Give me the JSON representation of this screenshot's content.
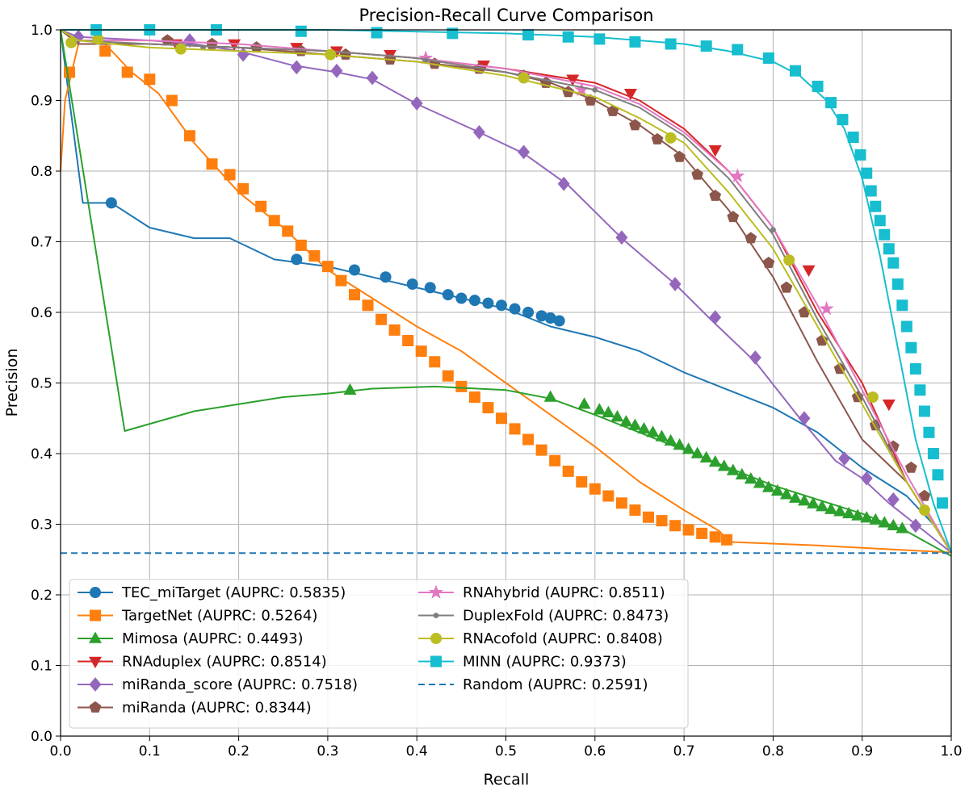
{
  "chart_data": {
    "type": "line",
    "title": "Precision-Recall Curve Comparison",
    "xlabel": "Recall",
    "ylabel": "Precision",
    "xlim": [
      0.0,
      1.0
    ],
    "ylim": [
      0.0,
      1.0
    ],
    "xticks": [
      "0.0",
      "0.1",
      "0.2",
      "0.3",
      "0.4",
      "0.5",
      "0.6",
      "0.7",
      "0.8",
      "0.9",
      "1.0"
    ],
    "yticks": [
      "0.0",
      "0.1",
      "0.2",
      "0.3",
      "0.4",
      "0.5",
      "0.6",
      "0.7",
      "0.8",
      "0.9",
      "1.0"
    ],
    "grid": true,
    "legend_position": "lower-left",
    "series": [
      {
        "name": "TEC_miTarget (AUPRC: 0.5835)",
        "color": "#1f77b4",
        "marker": "circle",
        "x": [
          0.0,
          0.01,
          0.025,
          0.057,
          0.1,
          0.15,
          0.19,
          0.24,
          0.3,
          0.35,
          0.4,
          0.45,
          0.5,
          0.55,
          0.6,
          0.65,
          0.7,
          0.75,
          0.8,
          0.85,
          0.9,
          0.95,
          0.98,
          1.0
        ],
        "y": [
          1.0,
          0.9,
          0.755,
          0.755,
          0.72,
          0.705,
          0.705,
          0.675,
          0.665,
          0.65,
          0.635,
          0.62,
          0.605,
          0.58,
          0.565,
          0.545,
          0.515,
          0.49,
          0.465,
          0.43,
          0.38,
          0.34,
          0.3,
          0.26
        ],
        "markers_x": [
          0.057,
          0.265,
          0.33,
          0.365,
          0.395,
          0.415,
          0.435,
          0.45,
          0.465,
          0.48,
          0.495,
          0.51,
          0.525,
          0.54,
          0.55,
          0.56
        ],
        "markers_y": [
          0.755,
          0.675,
          0.66,
          0.65,
          0.64,
          0.635,
          0.625,
          0.62,
          0.617,
          0.613,
          0.61,
          0.605,
          0.6,
          0.595,
          0.592,
          0.588
        ]
      },
      {
        "name": "TargetNet (AUPRC: 0.5264)",
        "color": "#ff7f0e",
        "marker": "square",
        "x": [
          0.0,
          0.005,
          0.02,
          0.05,
          0.08,
          0.11,
          0.15,
          0.2,
          0.25,
          0.3,
          0.35,
          0.4,
          0.45,
          0.5,
          0.55,
          0.6,
          0.65,
          0.7,
          0.74,
          0.75,
          0.85,
          1.0
        ],
        "y": [
          0.8,
          0.9,
          0.98,
          0.98,
          0.94,
          0.91,
          0.84,
          0.77,
          0.72,
          0.66,
          0.62,
          0.58,
          0.545,
          0.5,
          0.455,
          0.41,
          0.36,
          0.32,
          0.29,
          0.275,
          0.27,
          0.26
        ],
        "markers_x": [
          0.01,
          0.05,
          0.075,
          0.1,
          0.125,
          0.145,
          0.17,
          0.19,
          0.205,
          0.225,
          0.24,
          0.255,
          0.27,
          0.285,
          0.3,
          0.315,
          0.33,
          0.345,
          0.36,
          0.375,
          0.39,
          0.405,
          0.42,
          0.435,
          0.45,
          0.465,
          0.48,
          0.495,
          0.51,
          0.525,
          0.54,
          0.555,
          0.57,
          0.585,
          0.6,
          0.615,
          0.63,
          0.645,
          0.66,
          0.675,
          0.69,
          0.705,
          0.72,
          0.735,
          0.748
        ],
        "markers_y": [
          0.94,
          0.97,
          0.94,
          0.93,
          0.9,
          0.85,
          0.81,
          0.795,
          0.775,
          0.75,
          0.73,
          0.715,
          0.695,
          0.68,
          0.665,
          0.645,
          0.625,
          0.61,
          0.59,
          0.575,
          0.56,
          0.545,
          0.53,
          0.51,
          0.495,
          0.48,
          0.465,
          0.45,
          0.435,
          0.42,
          0.405,
          0.39,
          0.375,
          0.36,
          0.35,
          0.34,
          0.33,
          0.32,
          0.31,
          0.305,
          0.298,
          0.292,
          0.287,
          0.282,
          0.278
        ]
      },
      {
        "name": "Mimosa (AUPRC: 0.4493)",
        "color": "#2ca02c",
        "marker": "triangle-up",
        "x": [
          0.0,
          0.072,
          0.15,
          0.2,
          0.25,
          0.3,
          0.35,
          0.42,
          0.5,
          0.55,
          0.6,
          0.65,
          0.7,
          0.75,
          0.8,
          0.85,
          0.9,
          0.95,
          1.0
        ],
        "y": [
          1.0,
          0.432,
          0.46,
          0.47,
          0.48,
          0.485,
          0.492,
          0.495,
          0.49,
          0.478,
          0.455,
          0.43,
          0.405,
          0.38,
          0.355,
          0.335,
          0.315,
          0.29,
          0.255
        ],
        "markers_x": [
          0.325,
          0.55,
          0.588,
          0.605,
          0.615,
          0.625,
          0.635,
          0.645,
          0.655,
          0.665,
          0.675,
          0.685,
          0.695,
          0.705,
          0.715,
          0.725,
          0.735,
          0.745,
          0.755,
          0.765,
          0.775,
          0.785,
          0.795,
          0.805,
          0.815,
          0.825,
          0.835,
          0.845,
          0.855,
          0.865,
          0.875,
          0.885,
          0.895,
          0.905,
          0.915,
          0.925,
          0.935,
          0.945
        ],
        "markers_y": [
          0.49,
          0.48,
          0.47,
          0.462,
          0.458,
          0.452,
          0.445,
          0.44,
          0.435,
          0.43,
          0.424,
          0.418,
          0.412,
          0.406,
          0.4,
          0.394,
          0.388,
          0.382,
          0.376,
          0.37,
          0.364,
          0.358,
          0.352,
          0.347,
          0.342,
          0.337,
          0.333,
          0.329,
          0.325,
          0.321,
          0.318,
          0.315,
          0.312,
          0.309,
          0.306,
          0.302,
          0.298,
          0.294
        ]
      },
      {
        "name": "RNAduplex (AUPRC: 0.8514)",
        "color": "#d62728",
        "marker": "triangle-down",
        "x": [
          0.0,
          0.02,
          0.1,
          0.2,
          0.3,
          0.4,
          0.5,
          0.6,
          0.65,
          0.7,
          0.75,
          0.8,
          0.85,
          0.9,
          0.95,
          1.0
        ],
        "y": [
          1.0,
          0.98,
          0.98,
          0.975,
          0.97,
          0.96,
          0.945,
          0.925,
          0.9,
          0.86,
          0.8,
          0.72,
          0.6,
          0.5,
          0.36,
          0.26
        ],
        "markers_x": [
          0.13,
          0.195,
          0.265,
          0.31,
          0.37,
          0.475,
          0.575,
          0.64,
          0.735,
          0.84,
          0.93
        ],
        "markers_y": [
          0.98,
          0.98,
          0.975,
          0.97,
          0.965,
          0.95,
          0.93,
          0.91,
          0.83,
          0.66,
          0.47
        ]
      },
      {
        "name": "miRanda_score (AUPRC: 0.7518)",
        "color": "#9467bd",
        "marker": "diamond",
        "x": [
          0.0,
          0.02,
          0.1,
          0.15,
          0.2,
          0.26,
          0.31,
          0.35,
          0.4,
          0.47,
          0.52,
          0.57,
          0.63,
          0.69,
          0.73,
          0.78,
          0.83,
          0.87,
          0.9,
          0.93,
          0.96,
          1.0
        ],
        "y": [
          1.0,
          0.99,
          0.985,
          0.98,
          0.97,
          0.95,
          0.94,
          0.93,
          0.895,
          0.855,
          0.825,
          0.78,
          0.705,
          0.64,
          0.59,
          0.53,
          0.45,
          0.39,
          0.365,
          0.33,
          0.3,
          0.26
        ],
        "markers_x": [
          0.02,
          0.145,
          0.205,
          0.265,
          0.31,
          0.35,
          0.4,
          0.47,
          0.52,
          0.565,
          0.63,
          0.69,
          0.735,
          0.78,
          0.835,
          0.88,
          0.905,
          0.935,
          0.96
        ],
        "markers_y": [
          0.99,
          0.985,
          0.965,
          0.947,
          0.942,
          0.932,
          0.896,
          0.855,
          0.827,
          0.782,
          0.706,
          0.64,
          0.593,
          0.536,
          0.45,
          0.393,
          0.365,
          0.335,
          0.298
        ]
      },
      {
        "name": "miRanda (AUPRC: 0.8344)",
        "color": "#8c564b",
        "marker": "pentagon",
        "x": [
          0.0,
          0.02,
          0.1,
          0.2,
          0.3,
          0.4,
          0.5,
          0.55,
          0.6,
          0.65,
          0.7,
          0.75,
          0.8,
          0.85,
          0.9,
          0.95,
          0.98,
          1.0
        ],
        "y": [
          1.0,
          0.98,
          0.98,
          0.975,
          0.965,
          0.955,
          0.94,
          0.925,
          0.9,
          0.865,
          0.82,
          0.745,
          0.65,
          0.53,
          0.42,
          0.36,
          0.3,
          0.26
        ],
        "markers_x": [
          0.12,
          0.17,
          0.22,
          0.27,
          0.32,
          0.37,
          0.42,
          0.47,
          0.52,
          0.545,
          0.57,
          0.595,
          0.62,
          0.645,
          0.67,
          0.695,
          0.715,
          0.735,
          0.755,
          0.775,
          0.795,
          0.815,
          0.835,
          0.855,
          0.875,
          0.895,
          0.915,
          0.935,
          0.955,
          0.97
        ],
        "markers_y": [
          0.985,
          0.98,
          0.975,
          0.97,
          0.965,
          0.958,
          0.952,
          0.945,
          0.935,
          0.925,
          0.912,
          0.9,
          0.885,
          0.865,
          0.845,
          0.82,
          0.795,
          0.765,
          0.735,
          0.705,
          0.67,
          0.635,
          0.6,
          0.56,
          0.52,
          0.48,
          0.44,
          0.41,
          0.38,
          0.34
        ]
      },
      {
        "name": "RNAhybrid (AUPRC: 0.8511)",
        "color": "#e377c2",
        "marker": "star",
        "x": [
          0.0,
          0.02,
          0.1,
          0.2,
          0.3,
          0.4,
          0.5,
          0.6,
          0.65,
          0.7,
          0.75,
          0.8,
          0.85,
          0.9,
          0.95,
          1.0
        ],
        "y": [
          1.0,
          0.985,
          0.985,
          0.98,
          0.97,
          0.96,
          0.945,
          0.92,
          0.895,
          0.855,
          0.8,
          0.72,
          0.61,
          0.49,
          0.37,
          0.26
        ],
        "markers_x": [
          0.41,
          0.585,
          0.76,
          0.86
        ],
        "markers_y": [
          0.96,
          0.915,
          0.793,
          0.605
        ]
      },
      {
        "name": "DuplexFold (AUPRC: 0.8473)",
        "color": "#7f7f7f",
        "marker": "point",
        "x": [
          0.0,
          0.02,
          0.1,
          0.2,
          0.3,
          0.4,
          0.5,
          0.6,
          0.65,
          0.7,
          0.75,
          0.8,
          0.85,
          0.9,
          0.95,
          1.0
        ],
        "y": [
          1.0,
          0.985,
          0.98,
          0.975,
          0.97,
          0.96,
          0.94,
          0.915,
          0.89,
          0.85,
          0.79,
          0.71,
          0.59,
          0.48,
          0.36,
          0.26
        ],
        "markers_x": [
          0.16,
          0.41,
          0.6,
          0.8
        ],
        "markers_y": [
          0.975,
          0.957,
          0.915,
          0.717
        ]
      },
      {
        "name": "RNAcofold (AUPRC: 0.8408)",
        "color": "#bcbd22",
        "marker": "circle",
        "x": [
          0.0,
          0.02,
          0.1,
          0.2,
          0.3,
          0.4,
          0.5,
          0.6,
          0.65,
          0.7,
          0.75,
          0.8,
          0.85,
          0.9,
          0.95,
          1.0
        ],
        "y": [
          1.0,
          0.985,
          0.975,
          0.97,
          0.965,
          0.955,
          0.935,
          0.905,
          0.875,
          0.84,
          0.77,
          0.69,
          0.58,
          0.47,
          0.36,
          0.26
        ],
        "markers_x": [
          0.012,
          0.042,
          0.135,
          0.303,
          0.52,
          0.685,
          0.818,
          0.912,
          0.97
        ],
        "markers_y": [
          0.982,
          0.987,
          0.973,
          0.965,
          0.932,
          0.847,
          0.674,
          0.48,
          0.32
        ]
      },
      {
        "name": "MINN (AUPRC: 0.9373)",
        "color": "#17becf",
        "marker": "square",
        "x": [
          0.0,
          0.1,
          0.3,
          0.5,
          0.6,
          0.7,
          0.75,
          0.8,
          0.83,
          0.86,
          0.88,
          0.9,
          0.92,
          0.94,
          0.96,
          0.98,
          1.0
        ],
        "y": [
          1.0,
          1.0,
          1.0,
          0.995,
          0.99,
          0.98,
          0.97,
          0.955,
          0.935,
          0.9,
          0.86,
          0.79,
          0.68,
          0.55,
          0.42,
          0.33,
          0.26
        ],
        "markers_x": [
          0.04,
          0.1,
          0.175,
          0.27,
          0.355,
          0.44,
          0.525,
          0.57,
          0.605,
          0.645,
          0.685,
          0.725,
          0.76,
          0.795,
          0.825,
          0.85,
          0.865,
          0.878,
          0.89,
          0.898,
          0.905,
          0.91,
          0.915,
          0.92,
          0.925,
          0.93,
          0.935,
          0.94,
          0.945,
          0.95,
          0.955,
          0.96,
          0.965,
          0.97,
          0.975,
          0.98,
          0.985,
          0.99
        ],
        "markers_y": [
          1.0,
          1.0,
          1.0,
          0.998,
          0.996,
          0.995,
          0.993,
          0.99,
          0.987,
          0.983,
          0.98,
          0.977,
          0.972,
          0.96,
          0.942,
          0.92,
          0.897,
          0.873,
          0.848,
          0.823,
          0.797,
          0.772,
          0.75,
          0.73,
          0.71,
          0.69,
          0.67,
          0.64,
          0.61,
          0.58,
          0.55,
          0.52,
          0.49,
          0.46,
          0.43,
          0.4,
          0.37,
          0.33
        ]
      },
      {
        "name": "Random (AUPRC: 0.2591)",
        "color": "#1f77b4",
        "marker": "none",
        "dashed": true,
        "x": [
          0.0,
          1.0
        ],
        "y": [
          0.2591,
          0.2591
        ]
      }
    ]
  }
}
